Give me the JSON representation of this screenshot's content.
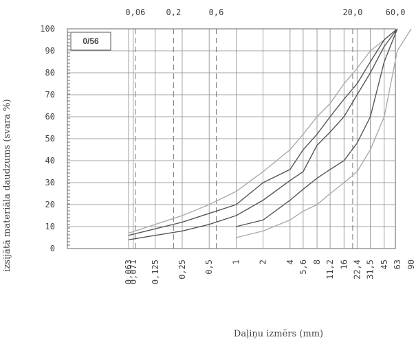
{
  "chart_data": {
    "type": "line",
    "label": "0/56",
    "x_title": "Daļiņu izmērs (mm)",
    "y_title": "izsijātā materiāla daudzums (svara %)",
    "x_scale": "log",
    "xlim": [
      0.063,
      90
    ],
    "ylim": [
      0,
      100
    ],
    "yticks": [
      0,
      10,
      20,
      30,
      40,
      50,
      60,
      70,
      80,
      90,
      100
    ],
    "xticks": [
      {
        "value": 0.063,
        "label": "0,063"
      },
      {
        "value": 0.071,
        "label": "0,071"
      },
      {
        "value": 0.125,
        "label": "0,125"
      },
      {
        "value": 0.25,
        "label": "0,25"
      },
      {
        "value": 0.5,
        "label": "0,5"
      },
      1,
      2,
      4,
      {
        "value": 5.6,
        "label": "5,6"
      },
      8,
      {
        "value": 11.2,
        "label": "11,2"
      },
      16,
      {
        "value": 22.4,
        "label": "22,4"
      },
      {
        "value": 31.5,
        "label": "31,5"
      },
      45,
      63,
      90
    ],
    "top_ticks": [
      {
        "value": 0.075,
        "label": "0,06"
      },
      {
        "value": 0.2,
        "label": "0,2"
      },
      {
        "value": 0.6,
        "label": "0,6"
      },
      {
        "value": 20,
        "label": "20,0"
      },
      {
        "value": 60,
        "label": "60,0"
      }
    ],
    "grid": true,
    "x": [
      0.063,
      0.125,
      0.25,
      0.5,
      1,
      2,
      4,
      5.6,
      8,
      11.2,
      16,
      22.4,
      31.5,
      45,
      63,
      90
    ],
    "series": [
      {
        "name": "upper-limit",
        "color": "#aaaaaa",
        "values": [
          7,
          11,
          15,
          20,
          26,
          35,
          45,
          52,
          60,
          66,
          75,
          82,
          90,
          95,
          100,
          null
        ]
      },
      {
        "name": "upper-curve",
        "color": "#555555",
        "values": [
          6,
          9,
          12,
          16,
          20,
          30,
          36,
          45,
          52,
          60,
          68,
          75,
          85,
          95,
          100,
          null
        ]
      },
      {
        "name": "middle-curve",
        "color": "#555555",
        "values": [
          4,
          6,
          8,
          11,
          15,
          22,
          31,
          35,
          47,
          53,
          60,
          70,
          80,
          92,
          100,
          null
        ]
      },
      {
        "name": "lower-curve",
        "color": "#555555",
        "values": [
          null,
          null,
          null,
          null,
          10,
          13,
          22,
          27,
          32,
          36,
          40,
          48,
          60,
          85,
          100,
          null
        ]
      },
      {
        "name": "lower-limit",
        "color": "#aaaaaa",
        "values": [
          null,
          null,
          null,
          null,
          5,
          8,
          13,
          17,
          20,
          25,
          30,
          35,
          45,
          60,
          90,
          100
        ]
      }
    ]
  }
}
